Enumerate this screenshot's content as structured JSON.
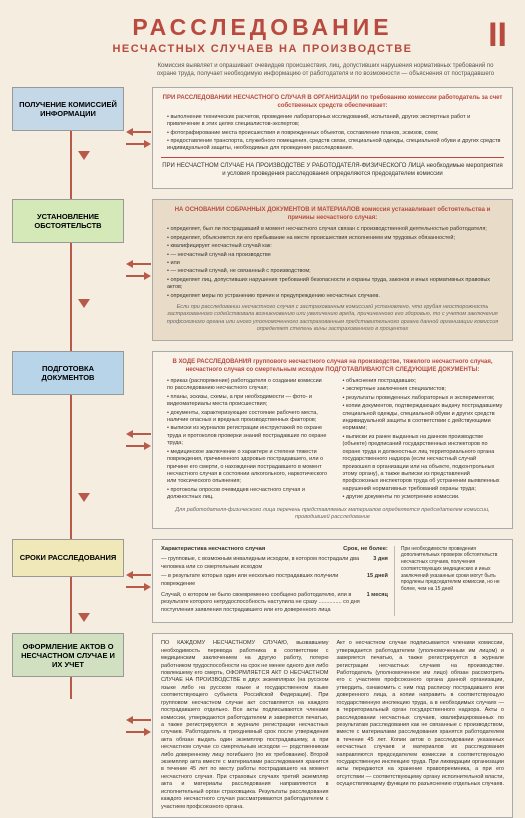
{
  "header": {
    "main": "РАССЛЕДОВАНИЕ",
    "sub": "НЕСЧАСТНЫХ СЛУЧАЕВ НА ПРОИЗВОДСТВЕ",
    "roman": "II"
  },
  "intro": "Комиссия выявляет и опрашивает очевидцев происшествия, лиц, допустивших нарушения нормативных требований по охране труда, получает необходимую информацию от работодателя и по возможности — объяснения от пострадавшего",
  "stages": [
    {
      "label": "ПОЛУЧЕНИЕ КОМИССИЕЙ ИНФОРМАЦИИ",
      "color": "c1"
    },
    {
      "label": "УСТАНОВЛЕНИЕ ОБСТОЯТЕЛЬСТВ",
      "color": "c2"
    },
    {
      "label": "ПОДГОТОВКА ДОКУМЕНТОВ",
      "color": "c3"
    },
    {
      "label": "СРОКИ РАССЛЕДОВАНИЯ",
      "color": "c4"
    },
    {
      "label": "ОФОРМЛЕНИЕ АКТОВ О НЕСЧАСТНОМ СЛУЧАЕ И ИХ УЧЕТ",
      "color": "c5"
    }
  ],
  "p1": {
    "h1": "ПРИ РАССЛЕДОВАНИИ НЕСЧАСТНОГО СЛУЧАЯ В ОРГАНИЗАЦИИ по требованию комиссии работодатель за счет собственных средств обеспечивает:",
    "items1": [
      "выполнение технических расчетов, проведение лабораторных исследований, испытаний, других экспертных работ и привлечение в этих целях специалистов-экспертов;",
      "фотографирование места происшествия и поврежденных объектов, составление планов, эскизов, схем;",
      "предоставление транспорта, служебного помещения, средств связи, специальной одежды, специальной обуви и других средств индивидуальной защиты, необходимых для проведения расследования."
    ],
    "h2": "ПРИ НЕСЧАСТНОМ СЛУЧАЕ НА ПРОИЗВОДСТВЕ У РАБОТОДАТЕЛЯ-ФИЗИЧЕСКОГО ЛИЦА необходимые мероприятия и условия проведения расследования определяются председателем комиссии"
  },
  "p2": {
    "h1": "НА ОСНОВАНИИ СОБРАННЫХ ДОКУМЕНТОВ И МАТЕРИАЛОВ комиссия устанавливает обстоятельства и причины несчастного случая:",
    "items1": [
      "определяет, был ли пострадавший в момент несчастного случая связан с производственной деятельностью работодателя;",
      "определяет, объясняется ли его пребывание на месте происшествия исполнением им трудовых обязанностей;",
      "квалифицирует несчастный случай как:",
      "— несчастный случай на производстве",
      "или",
      "— несчастный случай, не связанный с производством;",
      "определяет лиц, допустивших нарушения требований безопасности и охраны труда, законов и иных нормативных правовых актов;",
      "определяет меры по устранению причин и предупреждению несчастных случаев."
    ],
    "note": "Если при расследовании несчастного случая с застрахованным комиссией установлено, что грубая неосторожность застрахованного содействовала возникновению или увеличению вреда, причиненного его здоровью, то с учетом заключения профсоюзного органа или иного уполномоченного застрахованным представительного органа данной организации комиссия определяет степень вины застрахованного в процентах"
  },
  "p3": {
    "h1": "В ХОДЕ РАССЛЕДОВАНИЯ группового несчастного случая на производстве, тяжелого несчастного случая, несчастного случая со смертельным исходом ПОДГОТАВЛИВАЮТСЯ СЛЕДУЮЩИЕ ДОКУМЕНТЫ:",
    "left": [
      "приказ (распоряжение) работодателя о создании комиссии по расследованию несчастного случая;",
      "планы, эскизы, схемы, а при необходимости — фото- и видеоматериалы места происшествия;",
      "документы, характеризующие состояние рабочего места, наличие опасных и вредных производственных факторов;",
      "выписки из журналов регистрации инструктажей по охране труда и протоколов проверки знаний пострадавших по охране труда;",
      "медицинское заключение о характере и степени тяжести повреждения, причиненного здоровью пострадавшего, или о причине его смерти, о нахождении пострадавшего в момент несчастного случая в состоянии алкогольного, наркотического или токсического опьянения;",
      "протоколы опросов очевидцев несчастного случая и должностных лиц."
    ],
    "right": [
      "объяснения пострадавших;",
      "экспертные заключения специалистов;",
      "результаты проведенных лабораторных и экспериментов;",
      "копии документов, подтверждающих выдачу пострадавшему специальной одежды, специальной обуви и других средств индивидуальной защиты в соответствии с действующими нормами;",
      "выписки из ранее выданных на данном производстве (объекте) предписаний государственных инспекторов по охране труда и должностных лиц территориального органа государственного надзора (если несчастный случай произошел в организации или на объекте, подконтрольных этому органу), а также выписки из представлений профсоюзных инспекторов труда об устранении выявленных нарушений нормативных требований охраны труда;",
      "другие документы по усмотрению комиссии."
    ],
    "note": "Для работодателя-физического лица перечень представляемых материалов определяется председателем комиссии, проводившей расследование"
  },
  "p4": {
    "title": "Характеристика несчастного случая",
    "col2": "Срок, не более:",
    "sidenote": "При необходимости проведения дополнительных проверок обстоятельств несчастных случаев, получения соответствующих медицинских и иных заключений указанные сроки могут быть продлены председателем комиссии, но не более, чем на 15 дней",
    "rows": [
      {
        "l": "— групповые, с возможным инвалидным исходом, в котором пострадали два человека или со смертельным исходом",
        "r": "3 дня"
      },
      {
        "l": "— в результате которых один или несколько пострадавших получили повреждение",
        "r": "15 дней"
      },
      {
        "l": " ",
        "r": ""
      },
      {
        "l": "Случай, о котором не было своевременно сообщено работодателю, или в результате которого нетрудоспособность наступила не сразу ............... со дня поступления заявления пострадавшего или его доверенного лица",
        "r": "1 месяц"
      }
    ]
  },
  "p5": {
    "left": "ПО КАЖДОМУ НЕСЧАСТНОМУ СЛУЧАЮ, вызвавшему необходимость перевода работника в соответствии с медицинским заключением на другую работу, потерю работником трудоспособности на срок не менее одного дня либо повлекшему его смерть, ОФОРМЛЯЕТСЯ АКТ О НЕСЧАСТНОМ СЛУЧАЕ НА ПРОИЗВОДСТВЕ в двух экземплярах (на русском языке либо на русском языке и государственном языке соответствующего субъекта Российской Федерации). При групповом несчастном случае акт составляется на каждого пострадавшего отдельно. Все акты подписываются членами комиссии, утверждаются работодателем и заверяются печатью, а также регистрируются в журнале регистрации несчастных случаев. Работодатель в трехдневный срок после утверждения акта обязан выдать один экземпляр пострадавшему, а при несчастном случае со смертельным исходом — родственникам либо доверенному лицу погибшего (по их требованию). Второй экземпляр акта вместе с материалами расследования хранится в течение 45 лет по месту работы пострадавшего на момент несчастного случая. При страховых случаях третий экземпляр акта и материалы расследования направляются в исполнительный орган страховщика. Результаты расследования каждого несчастного случая рассматриваются работодателем с участием профсоюзного органа.",
    "right": "Акт о несчастном случае подписывается членами комиссии, утверждается работодателем (уполномоченным им лицом) и заверяется печатью, а также регистрируется в журнале регистрации несчастных случаев на производстве. Работодатель (уполномоченное им лицо) обязан рассмотреть его с участием профсоюзного органа данной организации, утвердить, ознакомить с ним под расписку пострадавшего или доверенного лица, а копии направить в соответствующую государственную инспекцию труда, а в необходимых случаях — в территориальный орган государственного надзора. Акты о расследовании несчастных случаев, квалифицированных по результатам расследования как не связанные с производством, вместе с материалами расследования хранятся работодателем в течение 45 лет. Копии актов о расследовании указанных несчастных случаев и материалов их расследования направляются председателем комиссии в соответствующую государственную инспекцию труда. При ликвидации организации акты передаются на хранение правопреемника, а при его отсутствии — соответствующему органу исполнительной власти, осуществляющему функции по разъяснению отдельных случаев."
  },
  "style": {
    "bg": "#f5ede0",
    "red": "#b84a3f",
    "line": "#b85a4a"
  }
}
